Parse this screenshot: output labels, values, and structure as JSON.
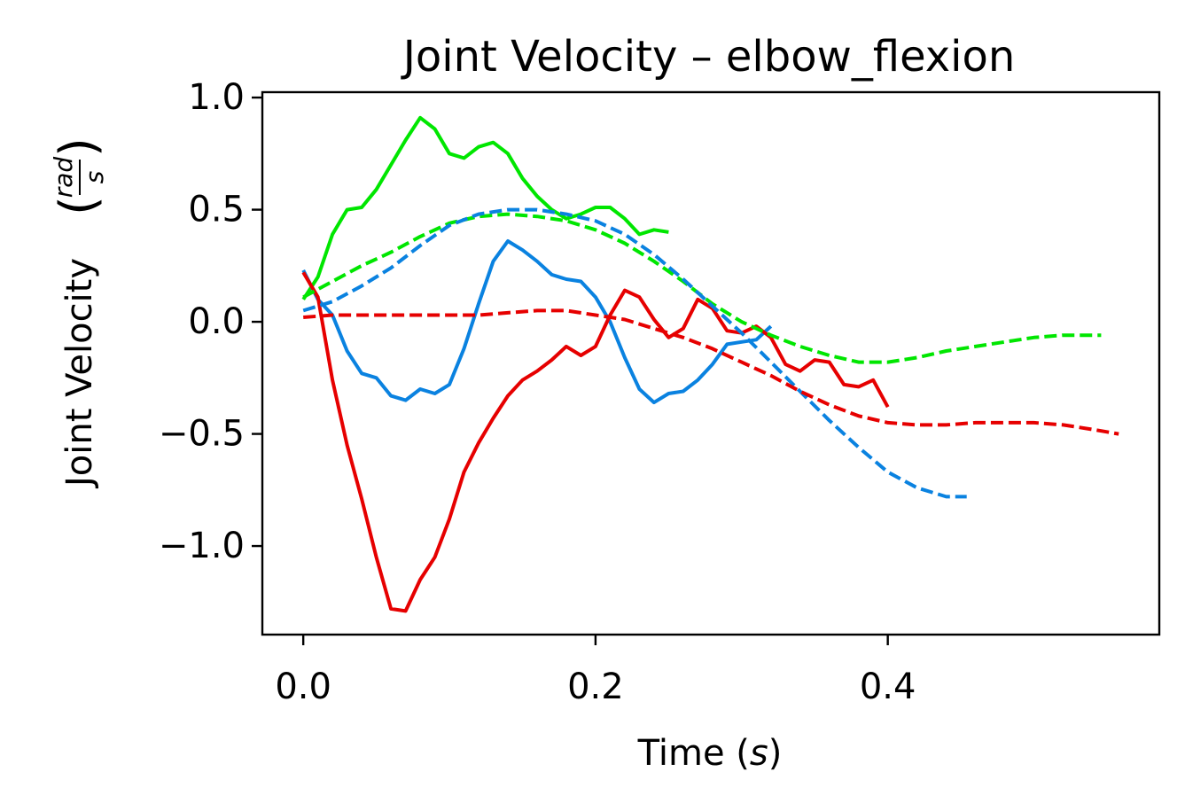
{
  "chart_data": {
    "type": "line",
    "title": "Joint Velocity – elbow_flexion",
    "xlabel": "Time",
    "xlabel_unit": "s",
    "ylabel": "Joint Velocity",
    "ylabel_unit_num": "rad",
    "ylabel_unit_den": "s",
    "xlim": [
      -0.028,
      0.5858
    ],
    "ylim": [
      -1.395,
      1.024
    ],
    "xticks": [
      0.0,
      0.2,
      0.4
    ],
    "yticks": [
      -1.0,
      -0.5,
      0.0,
      0.5,
      1.0
    ],
    "xtick_labels": [
      "0.0",
      "0.2",
      "0.4"
    ],
    "ytick_labels": [
      "−1.0",
      "−0.5",
      "0.0",
      "0.5",
      "1.0"
    ],
    "grid": false,
    "series": [
      {
        "color": "#00e600",
        "style": "solid",
        "x": [
          0,
          0.01,
          0.02,
          0.03,
          0.04,
          0.05,
          0.06,
          0.07,
          0.08,
          0.09,
          0.1,
          0.11,
          0.12,
          0.13,
          0.14,
          0.15,
          0.16,
          0.17,
          0.18,
          0.19,
          0.2,
          0.21,
          0.22,
          0.23,
          0.24,
          0.25
        ],
        "y": [
          0.1,
          0.2,
          0.39,
          0.5,
          0.51,
          0.59,
          0.7,
          0.81,
          0.91,
          0.86,
          0.75,
          0.73,
          0.78,
          0.8,
          0.75,
          0.64,
          0.56,
          0.5,
          0.46,
          0.48,
          0.51,
          0.51,
          0.46,
          0.39,
          0.41,
          0.4
        ]
      },
      {
        "color": "#0a82e0",
        "style": "solid",
        "x": [
          0,
          0.01,
          0.02,
          0.03,
          0.04,
          0.05,
          0.06,
          0.07,
          0.08,
          0.09,
          0.1,
          0.11,
          0.12,
          0.13,
          0.14,
          0.15,
          0.16,
          0.17,
          0.18,
          0.19,
          0.2,
          0.21,
          0.22,
          0.23,
          0.24,
          0.25,
          0.26,
          0.27,
          0.28,
          0.29,
          0.3,
          0.31,
          0.32
        ],
        "y": [
          0.23,
          0.1,
          0.03,
          -0.13,
          -0.23,
          -0.25,
          -0.33,
          -0.35,
          -0.3,
          -0.32,
          -0.28,
          -0.12,
          0.08,
          0.27,
          0.36,
          0.32,
          0.27,
          0.21,
          0.19,
          0.18,
          0.11,
          0.0,
          -0.16,
          -0.3,
          -0.36,
          -0.32,
          -0.31,
          -0.26,
          -0.19,
          -0.1,
          -0.09,
          -0.08,
          -0.02
        ]
      },
      {
        "color": "#e60000",
        "style": "solid",
        "x": [
          0,
          0.01,
          0.02,
          0.03,
          0.04,
          0.05,
          0.06,
          0.07,
          0.08,
          0.09,
          0.1,
          0.11,
          0.12,
          0.13,
          0.14,
          0.15,
          0.16,
          0.17,
          0.18,
          0.19,
          0.2,
          0.21,
          0.22,
          0.23,
          0.24,
          0.25,
          0.26,
          0.27,
          0.28,
          0.29,
          0.3,
          0.31,
          0.32,
          0.33,
          0.34,
          0.35,
          0.36,
          0.37,
          0.38,
          0.39,
          0.4
        ],
        "y": [
          0.22,
          0.11,
          -0.26,
          -0.55,
          -0.79,
          -1.05,
          -1.28,
          -1.29,
          -1.15,
          -1.05,
          -0.88,
          -0.67,
          -0.54,
          -0.43,
          -0.33,
          -0.26,
          -0.22,
          -0.17,
          -0.11,
          -0.15,
          -0.11,
          0.03,
          0.14,
          0.11,
          0.01,
          -0.07,
          -0.03,
          0.1,
          0.06,
          -0.04,
          -0.05,
          -0.02,
          -0.07,
          -0.19,
          -0.22,
          -0.17,
          -0.18,
          -0.28,
          -0.29,
          -0.26,
          -0.38
        ]
      },
      {
        "color": "#00e600",
        "style": "dashed",
        "x": [
          0,
          0.02,
          0.04,
          0.06,
          0.08,
          0.1,
          0.12,
          0.14,
          0.16,
          0.18,
          0.2,
          0.22,
          0.24,
          0.26,
          0.28,
          0.3,
          0.32,
          0.34,
          0.36,
          0.38,
          0.4,
          0.42,
          0.44,
          0.46,
          0.48,
          0.5,
          0.52,
          0.54,
          0.546
        ],
        "y": [
          0.11,
          0.18,
          0.25,
          0.31,
          0.38,
          0.44,
          0.47,
          0.48,
          0.47,
          0.45,
          0.41,
          0.35,
          0.27,
          0.18,
          0.08,
          0.0,
          -0.06,
          -0.11,
          -0.15,
          -0.18,
          -0.18,
          -0.16,
          -0.13,
          -0.11,
          -0.09,
          -0.07,
          -0.06,
          -0.06,
          -0.06
        ]
      },
      {
        "color": "#0a82e0",
        "style": "dashed",
        "x": [
          0,
          0.02,
          0.04,
          0.06,
          0.08,
          0.1,
          0.12,
          0.14,
          0.16,
          0.18,
          0.2,
          0.22,
          0.24,
          0.26,
          0.28,
          0.3,
          0.32,
          0.34,
          0.36,
          0.38,
          0.4,
          0.42,
          0.44,
          0.454
        ],
        "y": [
          0.05,
          0.09,
          0.16,
          0.24,
          0.34,
          0.43,
          0.48,
          0.5,
          0.5,
          0.48,
          0.45,
          0.39,
          0.3,
          0.19,
          0.07,
          -0.05,
          -0.18,
          -0.31,
          -0.44,
          -0.56,
          -0.67,
          -0.74,
          -0.78,
          -0.78
        ]
      },
      {
        "color": "#e60000",
        "style": "dashed",
        "x": [
          0,
          0.02,
          0.04,
          0.06,
          0.08,
          0.1,
          0.12,
          0.14,
          0.16,
          0.18,
          0.2,
          0.22,
          0.24,
          0.26,
          0.28,
          0.3,
          0.32,
          0.34,
          0.36,
          0.38,
          0.4,
          0.42,
          0.44,
          0.46,
          0.48,
          0.5,
          0.52,
          0.54,
          0.558
        ],
        "y": [
          0.02,
          0.03,
          0.03,
          0.03,
          0.03,
          0.03,
          0.03,
          0.04,
          0.05,
          0.05,
          0.03,
          0.01,
          -0.03,
          -0.07,
          -0.12,
          -0.18,
          -0.24,
          -0.31,
          -0.37,
          -0.42,
          -0.45,
          -0.46,
          -0.46,
          -0.45,
          -0.45,
          -0.45,
          -0.46,
          -0.48,
          -0.5
        ]
      }
    ]
  }
}
